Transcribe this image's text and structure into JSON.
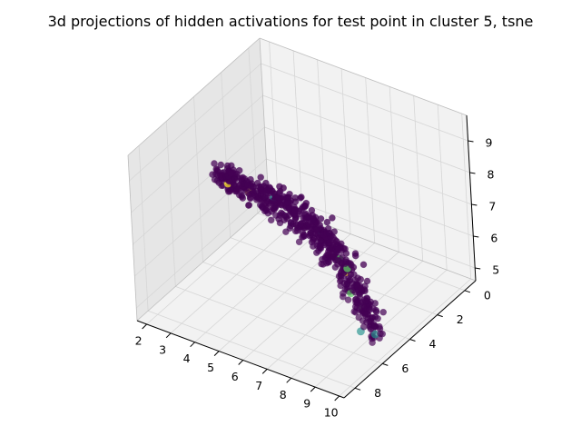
{
  "chart_data": {
    "type": "scatter",
    "projection": "3d",
    "title": "3d projections of hidden activations for test point in cluster 5, tsne",
    "x_ticks": [
      "2",
      "3",
      "4",
      "5",
      "6",
      "7",
      "8",
      "9",
      "10"
    ],
    "y_ticks": [
      "0",
      "2",
      "4",
      "6",
      "8"
    ],
    "z_ticks": [
      "5",
      "6",
      "7",
      "8",
      "9"
    ],
    "xlim": [
      1.6,
      10.2
    ],
    "ylim": [
      -0.8,
      8.8
    ],
    "zlim": [
      4.6,
      9.8
    ],
    "grid": true,
    "colormap": "viridis",
    "colors": {
      "dominant": "#440154",
      "teal": "#21918c",
      "green": "#5ec962",
      "yellow": "#fde725",
      "pane": "#f2f2f2",
      "pane_dark": "#e6e6e6",
      "grid": "#d6d6d6"
    },
    "point_groups": [
      {
        "group": 0,
        "color": "#440154",
        "approx_count": 600
      },
      {
        "group": 1,
        "color": "#21918c",
        "approx_count": 6
      },
      {
        "group": 2,
        "color": "#5ec962",
        "approx_count": 8
      },
      {
        "group": 3,
        "color": "#fde725",
        "approx_count": 4
      }
    ],
    "highlight_points": [
      {
        "x": 2.6,
        "y": 3.6,
        "z": 7.2,
        "group": 3
      },
      {
        "x": 3.6,
        "y": 3.8,
        "z": 7.3,
        "group": 3
      },
      {
        "x": 4.4,
        "y": 3.4,
        "z": 7.2,
        "group": 1
      },
      {
        "x": 6.7,
        "y": 4.0,
        "z": 7.0,
        "group": 1
      },
      {
        "x": 7.7,
        "y": 4.5,
        "z": 6.6,
        "group": 2
      },
      {
        "x": 7.9,
        "y": 4.3,
        "z": 6.3,
        "group": 2
      },
      {
        "x": 8.2,
        "y": 4.9,
        "z": 6.5,
        "group": 3
      },
      {
        "x": 9.3,
        "y": 5.7,
        "z": 6.0,
        "group": 2
      },
      {
        "x": 9.9,
        "y": 5.9,
        "z": 5.4,
        "group": 1
      },
      {
        "x": 9.6,
        "y": 6.4,
        "z": 5.6,
        "group": 1
      },
      {
        "x": 8.6,
        "y": 5.3,
        "z": 6.1,
        "group": 2
      }
    ]
  }
}
